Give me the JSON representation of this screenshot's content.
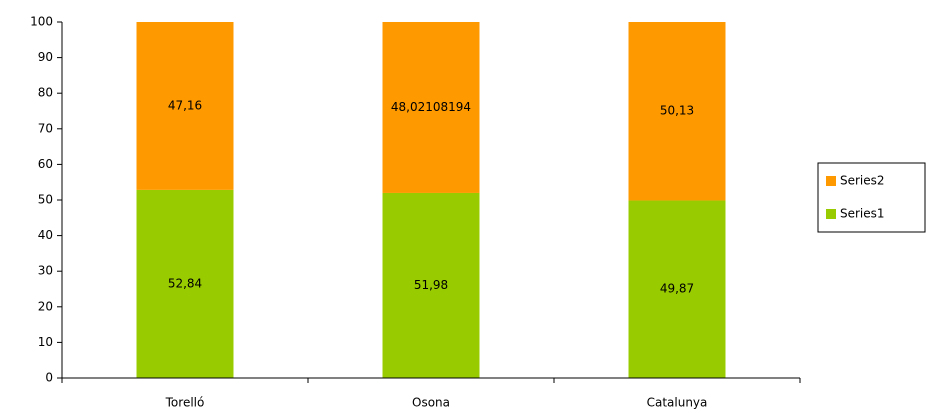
{
  "chart_data": {
    "type": "stacked_bar",
    "categories": [
      "Torelló",
      "Osona",
      "Catalunya"
    ],
    "series": [
      {
        "name": "Series1",
        "color": "#99cc00",
        "values": [
          52.84,
          51.98,
          49.87
        ],
        "value_labels": [
          "52,84",
          "51,98",
          "49,87"
        ]
      },
      {
        "name": "Series2",
        "color": "#ff9900",
        "values": [
          47.16,
          48.02108194,
          50.13
        ],
        "value_labels": [
          "47,16",
          "48,02108194",
          "50,13"
        ]
      }
    ],
    "ylim": [
      0,
      100
    ],
    "yticks": [
      0,
      10,
      20,
      30,
      40,
      50,
      60,
      70,
      80,
      90,
      100
    ],
    "grid": false,
    "legend": "right"
  }
}
